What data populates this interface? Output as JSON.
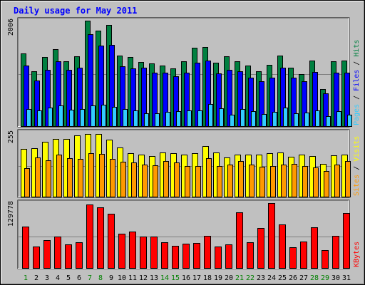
{
  "colors": {
    "background": "#c0c0c0",
    "title": "#0000ff",
    "weekday": "#008000",
    "weekend": "#006633",
    "pages": "#33ccff",
    "files": "#0000ff",
    "hits": "#008040",
    "sites": "#ff9900",
    "visits": "#ffff00",
    "kbytes": "#ff0000",
    "axis_label": "#000000",
    "slash": "#000000"
  },
  "chart_data": [
    {
      "type": "bar",
      "title": "Daily usage for May 2011",
      "panel": "hits-files-pages",
      "ymax_label": "2006",
      "ylim": [
        0,
        2006
      ],
      "grid": true,
      "legend_placement": "right, vertical",
      "legend": [
        {
          "text": "Pages",
          "color_key": "pages"
        },
        {
          "text": "Files",
          "color_key": "files"
        },
        {
          "text": "Hits",
          "color_key": "hits"
        }
      ],
      "categories": [
        "1",
        "2",
        "3",
        "4",
        "5",
        "6",
        "7",
        "8",
        "9",
        "10",
        "11",
        "12",
        "13",
        "14",
        "15",
        "16",
        "17",
        "18",
        "19",
        "20",
        "21",
        "22",
        "23",
        "24",
        "25",
        "26",
        "27",
        "28",
        "29",
        "30",
        "31"
      ],
      "series": [
        {
          "name": "Hits",
          "color_key": "hits",
          "values": [
            1380,
            1050,
            1320,
            1470,
            1240,
            1330,
            2006,
            1820,
            1930,
            1340,
            1320,
            1220,
            1200,
            1150,
            1100,
            1240,
            1490,
            1510,
            1210,
            1330,
            1240,
            1160,
            1050,
            1170,
            1340,
            1110,
            990,
            1250,
            710,
            1240,
            1250
          ]
        },
        {
          "name": "Files",
          "color_key": "files",
          "values": [
            1150,
            870,
            1070,
            1230,
            1070,
            1110,
            1750,
            1530,
            1550,
            1140,
            1100,
            1110,
            1020,
            1020,
            950,
            1020,
            1210,
            1250,
            1010,
            1070,
            1040,
            930,
            850,
            930,
            1110,
            920,
            860,
            1030,
            620,
            1020,
            1020
          ]
        },
        {
          "name": "Pages",
          "color_key": "pages",
          "values": [
            330,
            300,
            350,
            400,
            310,
            320,
            400,
            410,
            370,
            330,
            300,
            240,
            250,
            270,
            280,
            300,
            300,
            420,
            340,
            220,
            330,
            280,
            230,
            270,
            360,
            240,
            260,
            300,
            190,
            290,
            220
          ]
        }
      ]
    },
    {
      "type": "bar",
      "panel": "visits-sites",
      "ymax_label": "255",
      "ylim": [
        0,
        255
      ],
      "grid": true,
      "legend_placement": "right, vertical",
      "legend": [
        {
          "text": "Sites",
          "color_key": "sites"
        },
        {
          "text": "Visits",
          "color_key": "visits"
        }
      ],
      "categories": [
        "1",
        "2",
        "3",
        "4",
        "5",
        "6",
        "7",
        "8",
        "9",
        "10",
        "11",
        "12",
        "13",
        "14",
        "15",
        "16",
        "17",
        "18",
        "19",
        "20",
        "21",
        "22",
        "23",
        "24",
        "25",
        "26",
        "27",
        "28",
        "29",
        "30",
        "31"
      ],
      "series": [
        {
          "name": "Visits",
          "color_key": "visits",
          "values": [
            192,
            196,
            222,
            235,
            235,
            248,
            255,
            253,
            230,
            200,
            175,
            170,
            165,
            180,
            175,
            170,
            175,
            205,
            180,
            158,
            170,
            170,
            170,
            175,
            180,
            163,
            170,
            165,
            132,
            166,
            170
          ]
        },
        {
          "name": "Sites",
          "color_key": "sites",
          "values": [
            115,
            158,
            148,
            170,
            155,
            153,
            175,
            173,
            153,
            140,
            138,
            130,
            128,
            145,
            138,
            125,
            125,
            155,
            125,
            130,
            143,
            130,
            120,
            123,
            130,
            133,
            125,
            118,
            105,
            130,
            145
          ]
        }
      ]
    },
    {
      "type": "bar",
      "panel": "kbytes",
      "ymax_label": "129778",
      "ylim": [
        0,
        129778
      ],
      "grid": true,
      "legend_placement": "right, vertical",
      "legend": [
        {
          "text": "KBytes",
          "color_key": "kbytes"
        }
      ],
      "categories": [
        "1",
        "2",
        "3",
        "4",
        "5",
        "6",
        "7",
        "8",
        "9",
        "10",
        "11",
        "12",
        "13",
        "14",
        "15",
        "16",
        "17",
        "18",
        "19",
        "20",
        "21",
        "22",
        "23",
        "24",
        "25",
        "26",
        "27",
        "28",
        "29",
        "30",
        "31"
      ],
      "series": [
        {
          "name": "KBytes",
          "color_key": "kbytes",
          "values": [
            83000,
            43500,
            56000,
            62500,
            47000,
            51000,
            128000,
            121000,
            109000,
            68000,
            73000,
            63000,
            63000,
            52000,
            45000,
            49000,
            50000,
            64500,
            42500,
            47000,
            112000,
            52000,
            80000,
            130000,
            87000,
            41000,
            53000,
            81000,
            36000,
            64000,
            110000
          ]
        }
      ]
    }
  ],
  "x_axis": {
    "labels": [
      "1",
      "2",
      "3",
      "4",
      "5",
      "6",
      "7",
      "8",
      "9",
      "10",
      "11",
      "12",
      "13",
      "14",
      "15",
      "16",
      "17",
      "18",
      "19",
      "20",
      "21",
      "22",
      "23",
      "24",
      "25",
      "26",
      "27",
      "28",
      "29",
      "30",
      "31"
    ],
    "weekend_days": [
      "1",
      "7",
      "8",
      "14",
      "15",
      "21",
      "22",
      "28",
      "29"
    ]
  }
}
